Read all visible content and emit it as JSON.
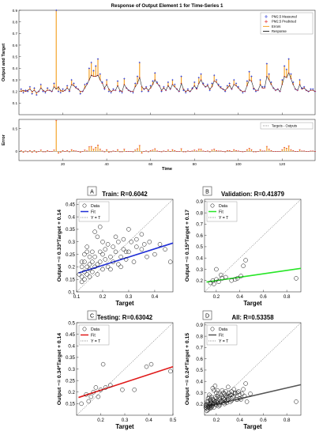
{
  "chart_data": [
    {
      "type": "line",
      "title": "Response of Output Element 1 for Time-Series 1",
      "xlabel": "Time",
      "ylabel": "Output and Target",
      "xlim": [
        0,
        135
      ],
      "ylim": [
        0,
        0.9
      ],
      "xticks": [
        20,
        40,
        60,
        80,
        100,
        120
      ],
      "yticks": [
        0.1,
        0.2,
        0.3,
        0.4,
        0.5,
        0.6,
        0.7,
        0.8,
        0.9
      ],
      "legend": [
        "PM2.5 Measured",
        "PM2.5 Predicted",
        "Errors",
        "Response"
      ],
      "legend_position": "top-right",
      "target": [
        0.22,
        0.19,
        0.21,
        0.2,
        0.24,
        0.18,
        0.23,
        0.17,
        0.2,
        0.26,
        0.2,
        0.19,
        0.23,
        0.21,
        0.2,
        0.27,
        0.9,
        0.2,
        0.19,
        0.22,
        0.21,
        0.25,
        0.2,
        0.3,
        0.27,
        0.24,
        0.22,
        0.18,
        0.2,
        0.26,
        0.27,
        0.4,
        0.45,
        0.38,
        0.42,
        0.48,
        0.35,
        0.28,
        0.22,
        0.3,
        0.2,
        0.19,
        0.22,
        0.21,
        0.29,
        0.2,
        0.19,
        0.31,
        0.23,
        0.21,
        0.2,
        0.19,
        0.27,
        0.33,
        0.45,
        0.2,
        0.22,
        0.24,
        0.2,
        0.25,
        0.29,
        0.36,
        0.28,
        0.25,
        0.2,
        0.24,
        0.21,
        0.28,
        0.22,
        0.3,
        0.26,
        0.22,
        0.2,
        0.33,
        0.21,
        0.19,
        0.22,
        0.2,
        0.23,
        0.28,
        0.23,
        0.32,
        0.35,
        0.27,
        0.24,
        0.26,
        0.21,
        0.27,
        0.34,
        0.3,
        0.26,
        0.24,
        0.22,
        0.2,
        0.25,
        0.27,
        0.22,
        0.3,
        0.27,
        0.24,
        0.21,
        0.19,
        0.2,
        0.29,
        0.37,
        0.33,
        0.22,
        0.2,
        0.21,
        0.3,
        0.24,
        0.24,
        0.44,
        0.35,
        0.28,
        0.23,
        0.21,
        0.22,
        0.2,
        0.3,
        0.42,
        0.39,
        0.48,
        0.35,
        0.28,
        0.22,
        0.21,
        0.3,
        0.23,
        0.24,
        0.21,
        0.2,
        0.22,
        0.22,
        0.2
      ],
      "output": [
        0.2,
        0.21,
        0.2,
        0.21,
        0.22,
        0.2,
        0.21,
        0.19,
        0.2,
        0.23,
        0.21,
        0.2,
        0.21,
        0.21,
        0.2,
        0.24,
        0.22,
        0.24,
        0.21,
        0.2,
        0.21,
        0.23,
        0.21,
        0.26,
        0.25,
        0.23,
        0.22,
        0.2,
        0.2,
        0.23,
        0.26,
        0.3,
        0.34,
        0.33,
        0.33,
        0.34,
        0.3,
        0.27,
        0.23,
        0.26,
        0.22,
        0.2,
        0.21,
        0.21,
        0.25,
        0.21,
        0.2,
        0.26,
        0.23,
        0.21,
        0.2,
        0.2,
        0.24,
        0.27,
        0.32,
        0.24,
        0.22,
        0.23,
        0.21,
        0.23,
        0.26,
        0.3,
        0.27,
        0.25,
        0.21,
        0.23,
        0.21,
        0.25,
        0.22,
        0.26,
        0.24,
        0.22,
        0.2,
        0.27,
        0.22,
        0.2,
        0.21,
        0.2,
        0.22,
        0.25,
        0.22,
        0.27,
        0.3,
        0.26,
        0.24,
        0.25,
        0.22,
        0.24,
        0.29,
        0.28,
        0.25,
        0.23,
        0.22,
        0.21,
        0.23,
        0.25,
        0.22,
        0.26,
        0.25,
        0.23,
        0.21,
        0.2,
        0.2,
        0.25,
        0.3,
        0.29,
        0.23,
        0.21,
        0.21,
        0.26,
        0.23,
        0.23,
        0.33,
        0.3,
        0.26,
        0.23,
        0.21,
        0.22,
        0.2,
        0.26,
        0.33,
        0.32,
        0.36,
        0.31,
        0.26,
        0.22,
        0.21,
        0.26,
        0.22,
        0.23,
        0.21,
        0.2,
        0.21,
        0.21,
        0.2
      ]
    },
    {
      "type": "bar",
      "title": "",
      "xlabel": "Time",
      "ylabel": "Error",
      "xlim": [
        0,
        135
      ],
      "ylim": [
        -0.2,
        0.7
      ],
      "xticks": [
        20,
        40,
        60,
        80,
        100,
        120
      ],
      "yticks": [
        0,
        0.5
      ],
      "legend": [
        "Targets - Outputs"
      ],
      "legend_position": "top-right"
    },
    {
      "type": "scatter",
      "panel_label": "A",
      "title": "Train: R=0.6042",
      "xlabel": "Target",
      "ylabel": "Output ~= 0.33*Target + 0.14",
      "xlim": [
        0.1,
        0.47
      ],
      "ylim": [
        0.1,
        0.47
      ],
      "xticks": [
        0.1,
        0.2,
        0.3,
        0.4
      ],
      "yticks": [
        0.1,
        0.15,
        0.2,
        0.25,
        0.3,
        0.35,
        0.4,
        0.45
      ],
      "legend": [
        "Data",
        "Fit",
        "Y = T"
      ],
      "legend_position": "top-left",
      "fit_color": "#1f2ed6",
      "fit": {
        "slope": 0.33,
        "intercept": 0.14
      },
      "points": [
        [
          0.12,
          0.16
        ],
        [
          0.13,
          0.18
        ],
        [
          0.14,
          0.17
        ],
        [
          0.15,
          0.19
        ],
        [
          0.12,
          0.14
        ],
        [
          0.13,
          0.15
        ],
        [
          0.14,
          0.2
        ],
        [
          0.16,
          0.18
        ],
        [
          0.17,
          0.2
        ],
        [
          0.15,
          0.16
        ],
        [
          0.18,
          0.21
        ],
        [
          0.19,
          0.22
        ],
        [
          0.2,
          0.19
        ],
        [
          0.21,
          0.23
        ],
        [
          0.22,
          0.2
        ],
        [
          0.23,
          0.24
        ],
        [
          0.24,
          0.22
        ],
        [
          0.25,
          0.26
        ],
        [
          0.2,
          0.25
        ],
        [
          0.18,
          0.17
        ],
        [
          0.16,
          0.22
        ],
        [
          0.15,
          0.24
        ],
        [
          0.14,
          0.26
        ],
        [
          0.13,
          0.22
        ],
        [
          0.26,
          0.21
        ],
        [
          0.27,
          0.24
        ],
        [
          0.28,
          0.27
        ],
        [
          0.29,
          0.23
        ],
        [
          0.3,
          0.26
        ],
        [
          0.31,
          0.3
        ],
        [
          0.32,
          0.22
        ],
        [
          0.33,
          0.28
        ],
        [
          0.35,
          0.27
        ],
        [
          0.37,
          0.24
        ],
        [
          0.38,
          0.3
        ],
        [
          0.4,
          0.25
        ],
        [
          0.42,
          0.29
        ],
        [
          0.44,
          0.27
        ],
        [
          0.46,
          0.22
        ],
        [
          0.3,
          0.35
        ],
        [
          0.28,
          0.31
        ],
        [
          0.26,
          0.3
        ],
        [
          0.24,
          0.28
        ],
        [
          0.22,
          0.29
        ],
        [
          0.2,
          0.3
        ],
        [
          0.19,
          0.26
        ],
        [
          0.17,
          0.24
        ],
        [
          0.16,
          0.26
        ],
        [
          0.18,
          0.32
        ],
        [
          0.17,
          0.34
        ],
        [
          0.19,
          0.36
        ],
        [
          0.14,
          0.28
        ],
        [
          0.13,
          0.25
        ],
        [
          0.12,
          0.2
        ],
        [
          0.11,
          0.17
        ],
        [
          0.12,
          0.22
        ],
        [
          0.33,
          0.31
        ],
        [
          0.35,
          0.33
        ],
        [
          0.25,
          0.32
        ],
        [
          0.21,
          0.27
        ],
        [
          0.23,
          0.19
        ],
        [
          0.36,
          0.29
        ],
        [
          0.15,
          0.21
        ],
        [
          0.27,
          0.2
        ],
        [
          0.29,
          0.26
        ]
      ]
    },
    {
      "type": "scatter",
      "panel_label": "B",
      "title": "Validation: R=0.41879",
      "xlabel": "Target",
      "ylabel": "Output ~= 0.15*Target + 0.17",
      "xlim": [
        0.1,
        0.92
      ],
      "ylim": [
        0.1,
        0.92
      ],
      "xticks": [
        0.2,
        0.4,
        0.6,
        0.8
      ],
      "yticks": [
        0.2,
        0.3,
        0.4,
        0.5,
        0.6,
        0.7,
        0.8,
        0.9
      ],
      "legend": [
        "Data",
        "Fit",
        "Y = T"
      ],
      "legend_position": "top-left",
      "fit_color": "#27e627",
      "fit": {
        "slope": 0.15,
        "intercept": 0.17
      },
      "points": [
        [
          0.15,
          0.18
        ],
        [
          0.17,
          0.2
        ],
        [
          0.2,
          0.21
        ],
        [
          0.22,
          0.19
        ],
        [
          0.25,
          0.22
        ],
        [
          0.33,
          0.2
        ],
        [
          0.38,
          0.22
        ],
        [
          0.41,
          0.24
        ],
        [
          0.43,
          0.33
        ],
        [
          0.45,
          0.38
        ],
        [
          0.2,
          0.3
        ],
        [
          0.28,
          0.23
        ],
        [
          0.36,
          0.21
        ],
        [
          0.88,
          0.22
        ],
        [
          0.18,
          0.17
        ],
        [
          0.24,
          0.25
        ]
      ]
    },
    {
      "type": "scatter",
      "panel_label": "C",
      "title": "Testing: R=0.63042",
      "xlabel": "Target",
      "ylabel": "Output ~= 0.34*Target + 0.14",
      "xlim": [
        0.1,
        0.5
      ],
      "ylim": [
        0.1,
        0.5
      ],
      "xticks": [
        0.2,
        0.3,
        0.4,
        0.5
      ],
      "yticks": [
        0.15,
        0.2,
        0.25,
        0.3,
        0.35,
        0.4,
        0.45,
        0.5
      ],
      "legend": [
        "Data",
        "Fit",
        "Y = T"
      ],
      "legend_position": "top-left",
      "fit_color": "#e01919",
      "fit": {
        "slope": 0.34,
        "intercept": 0.14
      },
      "points": [
        [
          0.12,
          0.15
        ],
        [
          0.14,
          0.19
        ],
        [
          0.16,
          0.18
        ],
        [
          0.17,
          0.2
        ],
        [
          0.18,
          0.22
        ],
        [
          0.19,
          0.18
        ],
        [
          0.2,
          0.21
        ],
        [
          0.21,
          0.32
        ],
        [
          0.22,
          0.22
        ],
        [
          0.24,
          0.23
        ],
        [
          0.29,
          0.21
        ],
        [
          0.34,
          0.21
        ],
        [
          0.39,
          0.31
        ],
        [
          0.41,
          0.32
        ],
        [
          0.49,
          0.29
        ],
        [
          0.15,
          0.16
        ]
      ]
    },
    {
      "type": "scatter",
      "panel_label": "D",
      "title": "All: R=0.53358",
      "xlabel": "Target",
      "ylabel": "Output ~= 0.24*Target + 0.15",
      "xlim": [
        0.1,
        0.92
      ],
      "ylim": [
        0.1,
        0.92
      ],
      "xticks": [
        0.2,
        0.4,
        0.6,
        0.8
      ],
      "yticks": [
        0.2,
        0.3,
        0.4,
        0.5,
        0.6,
        0.7,
        0.8,
        0.9
      ],
      "legend": [
        "Data",
        "Fit",
        "Y = T"
      ],
      "legend_position": "top-left",
      "fit_color": "#555555",
      "fit": {
        "slope": 0.24,
        "intercept": 0.15
      },
      "points": [
        [
          0.12,
          0.16
        ],
        [
          0.13,
          0.18
        ],
        [
          0.14,
          0.17
        ],
        [
          0.15,
          0.19
        ],
        [
          0.12,
          0.14
        ],
        [
          0.13,
          0.15
        ],
        [
          0.14,
          0.2
        ],
        [
          0.16,
          0.18
        ],
        [
          0.17,
          0.2
        ],
        [
          0.15,
          0.16
        ],
        [
          0.18,
          0.21
        ],
        [
          0.19,
          0.22
        ],
        [
          0.2,
          0.19
        ],
        [
          0.21,
          0.23
        ],
        [
          0.22,
          0.2
        ],
        [
          0.23,
          0.24
        ],
        [
          0.24,
          0.22
        ],
        [
          0.25,
          0.26
        ],
        [
          0.2,
          0.25
        ],
        [
          0.18,
          0.17
        ],
        [
          0.16,
          0.22
        ],
        [
          0.15,
          0.24
        ],
        [
          0.14,
          0.26
        ],
        [
          0.13,
          0.22
        ],
        [
          0.26,
          0.21
        ],
        [
          0.27,
          0.24
        ],
        [
          0.28,
          0.27
        ],
        [
          0.29,
          0.23
        ],
        [
          0.3,
          0.26
        ],
        [
          0.31,
          0.3
        ],
        [
          0.32,
          0.22
        ],
        [
          0.33,
          0.28
        ],
        [
          0.35,
          0.27
        ],
        [
          0.37,
          0.24
        ],
        [
          0.38,
          0.3
        ],
        [
          0.4,
          0.25
        ],
        [
          0.42,
          0.29
        ],
        [
          0.44,
          0.27
        ],
        [
          0.46,
          0.22
        ],
        [
          0.3,
          0.35
        ],
        [
          0.28,
          0.31
        ],
        [
          0.26,
          0.3
        ],
        [
          0.24,
          0.28
        ],
        [
          0.22,
          0.29
        ],
        [
          0.2,
          0.3
        ],
        [
          0.19,
          0.26
        ],
        [
          0.17,
          0.24
        ],
        [
          0.16,
          0.26
        ],
        [
          0.18,
          0.32
        ],
        [
          0.17,
          0.34
        ],
        [
          0.19,
          0.36
        ],
        [
          0.14,
          0.28
        ],
        [
          0.13,
          0.25
        ],
        [
          0.12,
          0.2
        ],
        [
          0.11,
          0.17
        ],
        [
          0.12,
          0.22
        ],
        [
          0.33,
          0.31
        ],
        [
          0.35,
          0.33
        ],
        [
          0.25,
          0.32
        ],
        [
          0.21,
          0.27
        ],
        [
          0.23,
          0.19
        ],
        [
          0.36,
          0.29
        ],
        [
          0.15,
          0.21
        ],
        [
          0.27,
          0.2
        ],
        [
          0.29,
          0.26
        ],
        [
          0.41,
          0.24
        ],
        [
          0.43,
          0.33
        ],
        [
          0.45,
          0.38
        ],
        [
          0.88,
          0.22
        ],
        [
          0.21,
          0.32
        ],
        [
          0.39,
          0.31
        ],
        [
          0.49,
          0.29
        ],
        [
          0.18,
          0.23
        ],
        [
          0.16,
          0.21
        ],
        [
          0.2,
          0.22
        ],
        [
          0.22,
          0.18
        ],
        [
          0.14,
          0.18
        ],
        [
          0.17,
          0.19
        ],
        [
          0.19,
          0.2
        ],
        [
          0.13,
          0.17
        ],
        [
          0.24,
          0.21
        ],
        [
          0.26,
          0.25
        ],
        [
          0.28,
          0.22
        ],
        [
          0.3,
          0.24
        ],
        [
          0.32,
          0.28
        ],
        [
          0.34,
          0.26
        ],
        [
          0.36,
          0.3
        ],
        [
          0.38,
          0.24
        ],
        [
          0.4,
          0.28
        ],
        [
          0.15,
          0.23
        ],
        [
          0.16,
          0.17
        ],
        [
          0.12,
          0.18
        ],
        [
          0.11,
          0.19
        ],
        [
          0.21,
          0.21
        ],
        [
          0.23,
          0.26
        ],
        [
          0.25,
          0.23
        ],
        [
          0.27,
          0.29
        ],
        [
          0.29,
          0.21
        ],
        [
          0.31,
          0.27
        ],
        [
          0.33,
          0.23
        ]
      ]
    }
  ]
}
